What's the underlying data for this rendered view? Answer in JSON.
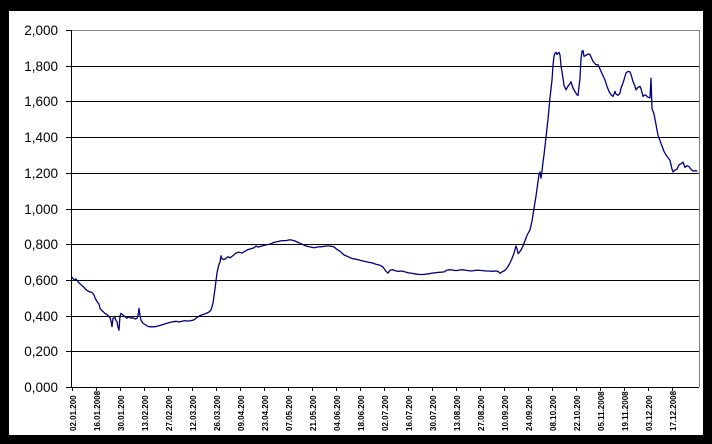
{
  "page": {
    "description": "Line chart screenshot with black frame, white chart panel, no title, no legend"
  },
  "colors": {
    "frame": "#000000",
    "panel": "#ffffff",
    "gridline": "#000000",
    "axis": "#000000",
    "plot_border": "#808080",
    "series": "#000080",
    "text": "#000000"
  },
  "chart_data": {
    "type": "line",
    "title": "",
    "grid": "horizontal lines every 0.200, black",
    "y_axis": {
      "min": 0.0,
      "max": 2.0,
      "step": 0.2,
      "labels": [
        "2,000",
        "1,800",
        "1,600",
        "1,400",
        "1,200",
        "1,000",
        "0,800",
        "0,600",
        "0,400",
        "0,200",
        "0,000"
      ]
    },
    "x_axis": {
      "label_rotation_deg": -90,
      "labels": [
        "02.01.200",
        "16.01.2008",
        "30.01.200",
        "13.02.200",
        "27.02.200",
        "12.03.200",
        "26.03.200",
        "09.04.200",
        "23.04.200",
        "07.05.200",
        "21.05.200",
        "04.06.200",
        "18.06.200",
        "02.07.200",
        "16.07.200",
        "30.07.200",
        "13.08.200",
        "27.08.200",
        "10.09.200",
        "24.09.200",
        "08.10.200",
        "22.10.200",
        "05.11.2008",
        "19.11.2008",
        "03.12.200",
        "17.12.2008"
      ]
    },
    "series": [
      {
        "name": "",
        "color": "#000080",
        "points_format": [
          "x_px_along_time_axis",
          "y_value"
        ],
        "points": [
          [
            72,
            0.615
          ],
          [
            74,
            0.6
          ],
          [
            76,
            0.605
          ],
          [
            78,
            0.59
          ],
          [
            80,
            0.578
          ],
          [
            82,
            0.568
          ],
          [
            84,
            0.558
          ],
          [
            86,
            0.545
          ],
          [
            88,
            0.538
          ],
          [
            90,
            0.532
          ],
          [
            92,
            0.53
          ],
          [
            94,
            0.515
          ],
          [
            95,
            0.5
          ],
          [
            97,
            0.478
          ],
          [
            99,
            0.465
          ],
          [
            100,
            0.44
          ],
          [
            102,
            0.428
          ],
          [
            105,
            0.413
          ],
          [
            107,
            0.405
          ],
          [
            108,
            0.4
          ],
          [
            110,
            0.388
          ],
          [
            111,
            0.37
          ],
          [
            112,
            0.338
          ],
          [
            113,
            0.385
          ],
          [
            115,
            0.388
          ],
          [
            116,
            0.372
          ],
          [
            117,
            0.366
          ],
          [
            118,
            0.335
          ],
          [
            119,
            0.318
          ],
          [
            120,
            0.398
          ],
          [
            121,
            0.413
          ],
          [
            123,
            0.403
          ],
          [
            125,
            0.394
          ],
          [
            127,
            0.385
          ],
          [
            129,
            0.394
          ],
          [
            131,
            0.385
          ],
          [
            133,
            0.388
          ],
          [
            135,
            0.381
          ],
          [
            137,
            0.385
          ],
          [
            138,
            0.4
          ],
          [
            139,
            0.441
          ],
          [
            140,
            0.4
          ],
          [
            141,
            0.375
          ],
          [
            143,
            0.357
          ],
          [
            145,
            0.35
          ],
          [
            147,
            0.343
          ],
          [
            149,
            0.338
          ],
          [
            152,
            0.337
          ],
          [
            155,
            0.338
          ],
          [
            158,
            0.342
          ],
          [
            161,
            0.347
          ],
          [
            164,
            0.352
          ],
          [
            167,
            0.357
          ],
          [
            170,
            0.362
          ],
          [
            173,
            0.365
          ],
          [
            176,
            0.368
          ],
          [
            179,
            0.364
          ],
          [
            182,
            0.368
          ],
          [
            185,
            0.372
          ],
          [
            188,
            0.369
          ],
          [
            191,
            0.372
          ],
          [
            194,
            0.376
          ],
          [
            197,
            0.39
          ],
          [
            200,
            0.4
          ],
          [
            203,
            0.406
          ],
          [
            206,
            0.412
          ],
          [
            209,
            0.42
          ],
          [
            211,
            0.432
          ],
          [
            213,
            0.47
          ],
          [
            215,
            0.55
          ],
          [
            217,
            0.64
          ],
          [
            219,
            0.688
          ],
          [
            220,
            0.7
          ],
          [
            221,
            0.735
          ],
          [
            222,
            0.718
          ],
          [
            224,
            0.714
          ],
          [
            226,
            0.72
          ],
          [
            228,
            0.73
          ],
          [
            230,
            0.724
          ],
          [
            233,
            0.736
          ],
          [
            236,
            0.75
          ],
          [
            239,
            0.756
          ],
          [
            242,
            0.75
          ],
          [
            245,
            0.76
          ],
          [
            248,
            0.77
          ],
          [
            251,
            0.774
          ],
          [
            254,
            0.78
          ],
          [
            256,
            0.79
          ],
          [
            258,
            0.784
          ],
          [
            262,
            0.79
          ],
          [
            266,
            0.796
          ],
          [
            270,
            0.8
          ],
          [
            274,
            0.81
          ],
          [
            278,
            0.815
          ],
          [
            282,
            0.82
          ],
          [
            286,
            0.82
          ],
          [
            290,
            0.825
          ],
          [
            294,
            0.82
          ],
          [
            298,
            0.81
          ],
          [
            302,
            0.8
          ],
          [
            306,
            0.79
          ],
          [
            310,
            0.785
          ],
          [
            314,
            0.78
          ],
          [
            318,
            0.785
          ],
          [
            322,
            0.786
          ],
          [
            326,
            0.79
          ],
          [
            330,
            0.79
          ],
          [
            334,
            0.785
          ],
          [
            336,
            0.775
          ],
          [
            340,
            0.76
          ],
          [
            344,
            0.74
          ],
          [
            348,
            0.73
          ],
          [
            352,
            0.72
          ],
          [
            356,
            0.716
          ],
          [
            360,
            0.71
          ],
          [
            364,
            0.705
          ],
          [
            368,
            0.7
          ],
          [
            372,
            0.695
          ],
          [
            376,
            0.688
          ],
          [
            380,
            0.682
          ],
          [
            383,
            0.672
          ],
          [
            386,
            0.648
          ],
          [
            388,
            0.638
          ],
          [
            390,
            0.655
          ],
          [
            393,
            0.657
          ],
          [
            396,
            0.65
          ],
          [
            399,
            0.648
          ],
          [
            402,
            0.65
          ],
          [
            405,
            0.645
          ],
          [
            408,
            0.64
          ],
          [
            411,
            0.638
          ],
          [
            414,
            0.635
          ],
          [
            417,
            0.632
          ],
          [
            420,
            0.63
          ],
          [
            423,
            0.63
          ],
          [
            426,
            0.632
          ],
          [
            429,
            0.635
          ],
          [
            432,
            0.638
          ],
          [
            435,
            0.64
          ],
          [
            438,
            0.642
          ],
          [
            441,
            0.643
          ],
          [
            444,
            0.645
          ],
          [
            447,
            0.655
          ],
          [
            450,
            0.657
          ],
          [
            453,
            0.655
          ],
          [
            456,
            0.652
          ],
          [
            459,
            0.655
          ],
          [
            462,
            0.657
          ],
          [
            465,
            0.655
          ],
          [
            468,
            0.652
          ],
          [
            471,
            0.65
          ],
          [
            474,
            0.652
          ],
          [
            477,
            0.655
          ],
          [
            480,
            0.653
          ],
          [
            483,
            0.652
          ],
          [
            486,
            0.65
          ],
          [
            489,
            0.65
          ],
          [
            492,
            0.648
          ],
          [
            495,
            0.65
          ],
          [
            498,
            0.648
          ],
          [
            500,
            0.637
          ],
          [
            502,
            0.645
          ],
          [
            504,
            0.65
          ],
          [
            506,
            0.66
          ],
          [
            508,
            0.675
          ],
          [
            510,
            0.695
          ],
          [
            512,
            0.72
          ],
          [
            514,
            0.75
          ],
          [
            516,
            0.79
          ],
          [
            517,
            0.775
          ],
          [
            518,
            0.748
          ],
          [
            519,
            0.752
          ],
          [
            521,
            0.768
          ],
          [
            523,
            0.79
          ],
          [
            525,
            0.82
          ],
          [
            527,
            0.85
          ],
          [
            529,
            0.87
          ],
          [
            530,
            0.88
          ],
          [
            532,
            0.93
          ],
          [
            534,
            1.0
          ],
          [
            536,
            1.07
          ],
          [
            537,
            1.11
          ],
          [
            538,
            1.15
          ],
          [
            539,
            1.19
          ],
          [
            540,
            1.205
          ],
          [
            541,
            1.17
          ],
          [
            542,
            1.21
          ],
          [
            543,
            1.26
          ],
          [
            544,
            1.3
          ],
          [
            546,
            1.4
          ],
          [
            548,
            1.5
          ],
          [
            550,
            1.62
          ],
          [
            552,
            1.72
          ],
          [
            553,
            1.8
          ],
          [
            554,
            1.855
          ],
          [
            555,
            1.87
          ],
          [
            556,
            1.875
          ],
          [
            557,
            1.862
          ],
          [
            558,
            1.87
          ],
          [
            559,
            1.875
          ],
          [
            560,
            1.86
          ],
          [
            561,
            1.8
          ],
          [
            563,
            1.73
          ],
          [
            564,
            1.69
          ],
          [
            566,
            1.665
          ],
          [
            568,
            1.685
          ],
          [
            570,
            1.7
          ],
          [
            571,
            1.71
          ],
          [
            573,
            1.675
          ],
          [
            575,
            1.655
          ],
          [
            577,
            1.637
          ],
          [
            578,
            1.633
          ],
          [
            580,
            1.73
          ],
          [
            581,
            1.84
          ],
          [
            582,
            1.88
          ],
          [
            583,
            1.885
          ],
          [
            584,
            1.852
          ],
          [
            586,
            1.858
          ],
          [
            588,
            1.866
          ],
          [
            590,
            1.862
          ],
          [
            593,
            1.824
          ],
          [
            596,
            1.805
          ],
          [
            598,
            1.806
          ],
          [
            601,
            1.768
          ],
          [
            605,
            1.72
          ],
          [
            607,
            1.684
          ],
          [
            609,
            1.656
          ],
          [
            611,
            1.637
          ],
          [
            613,
            1.628
          ],
          [
            615,
            1.656
          ],
          [
            616,
            1.641
          ],
          [
            618,
            1.634
          ],
          [
            620,
            1.647
          ],
          [
            621,
            1.675
          ],
          [
            623,
            1.703
          ],
          [
            625,
            1.74
          ],
          [
            626,
            1.759
          ],
          [
            628,
            1.768
          ],
          [
            630,
            1.765
          ],
          [
            631,
            1.75
          ],
          [
            633,
            1.712
          ],
          [
            635,
            1.684
          ],
          [
            636,
            1.665
          ],
          [
            638,
            1.679
          ],
          [
            640,
            1.684
          ],
          [
            641,
            1.671
          ],
          [
            643,
            1.628
          ],
          [
            645,
            1.637
          ],
          [
            646,
            1.634
          ],
          [
            648,
            1.623
          ],
          [
            650,
            1.62
          ],
          [
            651,
            1.73
          ],
          [
            652,
            1.56
          ],
          [
            654,
            1.53
          ],
          [
            656,
            1.47
          ],
          [
            658,
            1.41
          ],
          [
            660,
            1.38
          ],
          [
            662,
            1.35
          ],
          [
            664,
            1.32
          ],
          [
            666,
            1.3
          ],
          [
            668,
            1.285
          ],
          [
            670,
            1.27
          ],
          [
            672,
            1.22
          ],
          [
            673,
            1.205
          ],
          [
            675,
            1.215
          ],
          [
            677,
            1.22
          ],
          [
            679,
            1.245
          ],
          [
            681,
            1.25
          ],
          [
            683,
            1.26
          ],
          [
            685,
            1.23
          ],
          [
            687,
            1.24
          ],
          [
            689,
            1.235
          ],
          [
            691,
            1.22
          ],
          [
            693,
            1.21
          ],
          [
            695,
            1.212
          ],
          [
            697,
            1.21
          ]
        ]
      }
    ]
  }
}
